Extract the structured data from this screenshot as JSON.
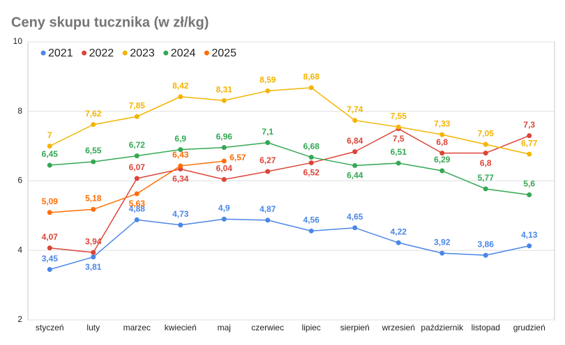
{
  "chart_data": {
    "type": "line",
    "title": "Ceny skupu tucznika (w zł/kg)",
    "categories": [
      "styczeń",
      "luty",
      "marzec",
      "kwiecień",
      "maj",
      "czerwiec",
      "lipiec",
      "sierpień",
      "wrzesień",
      "październik",
      "listopad",
      "grudzień"
    ],
    "ylim": [
      2,
      10
    ],
    "yticks": [
      2,
      4,
      6,
      8,
      10
    ],
    "grid": true,
    "legend": "top-left",
    "series": [
      {
        "name": "2021",
        "color": "#4a86e8",
        "values": [
          3.45,
          3.81,
          4.88,
          4.73,
          4.9,
          4.87,
          4.56,
          4.65,
          4.22,
          3.92,
          3.86,
          4.13
        ],
        "value_labels": [
          "3,45",
          "3,81",
          "4,88",
          "4,73",
          "4,9",
          "4,87",
          "4,56",
          "4,65",
          "4,22",
          "3,92",
          "3,86",
          "4,13"
        ]
      },
      {
        "name": "2022",
        "color": "#db4437",
        "values": [
          4.07,
          3.94,
          6.07,
          6.34,
          6.04,
          6.27,
          6.52,
          6.84,
          7.5,
          6.8,
          6.8,
          7.3
        ],
        "value_labels": [
          "4,07",
          "3,94",
          "6,07",
          "6,34",
          "6,04",
          "6,27",
          "6,52",
          "6,84",
          "7,5",
          "6,8",
          "6,8",
          "7,3"
        ]
      },
      {
        "name": "2023",
        "color": "#f4b400",
        "values": [
          7,
          7.62,
          7.85,
          8.42,
          8.31,
          8.59,
          8.68,
          7.74,
          7.55,
          7.33,
          7.05,
          6.77
        ],
        "value_labels": [
          "7",
          "7,62",
          "7,85",
          "8,42",
          "8,31",
          "8,59",
          "8,68",
          "7,74",
          "7,55",
          "7,33",
          "7,05",
          "6,77"
        ]
      },
      {
        "name": "2024",
        "color": "#34a853",
        "values": [
          6.45,
          6.55,
          6.72,
          6.9,
          6.96,
          7.1,
          6.68,
          6.44,
          6.51,
          6.29,
          5.77,
          5.6
        ],
        "value_labels": [
          "6,45",
          "6,55",
          "6,72",
          "6,9",
          "6,96",
          "7,1",
          "6,68",
          "6,44",
          "6,51",
          "6,29",
          "5,77",
          "5,6"
        ]
      },
      {
        "name": "2025",
        "color": "#ff6d01",
        "values": [
          5.09,
          5.18,
          5.63,
          6.43,
          6.57,
          null,
          null,
          null,
          null,
          null,
          null,
          null
        ],
        "value_labels": [
          "5,09",
          "5,18",
          "5,63",
          "6,43",
          "6,57",
          null,
          null,
          null,
          null,
          null,
          null,
          null
        ]
      }
    ]
  }
}
